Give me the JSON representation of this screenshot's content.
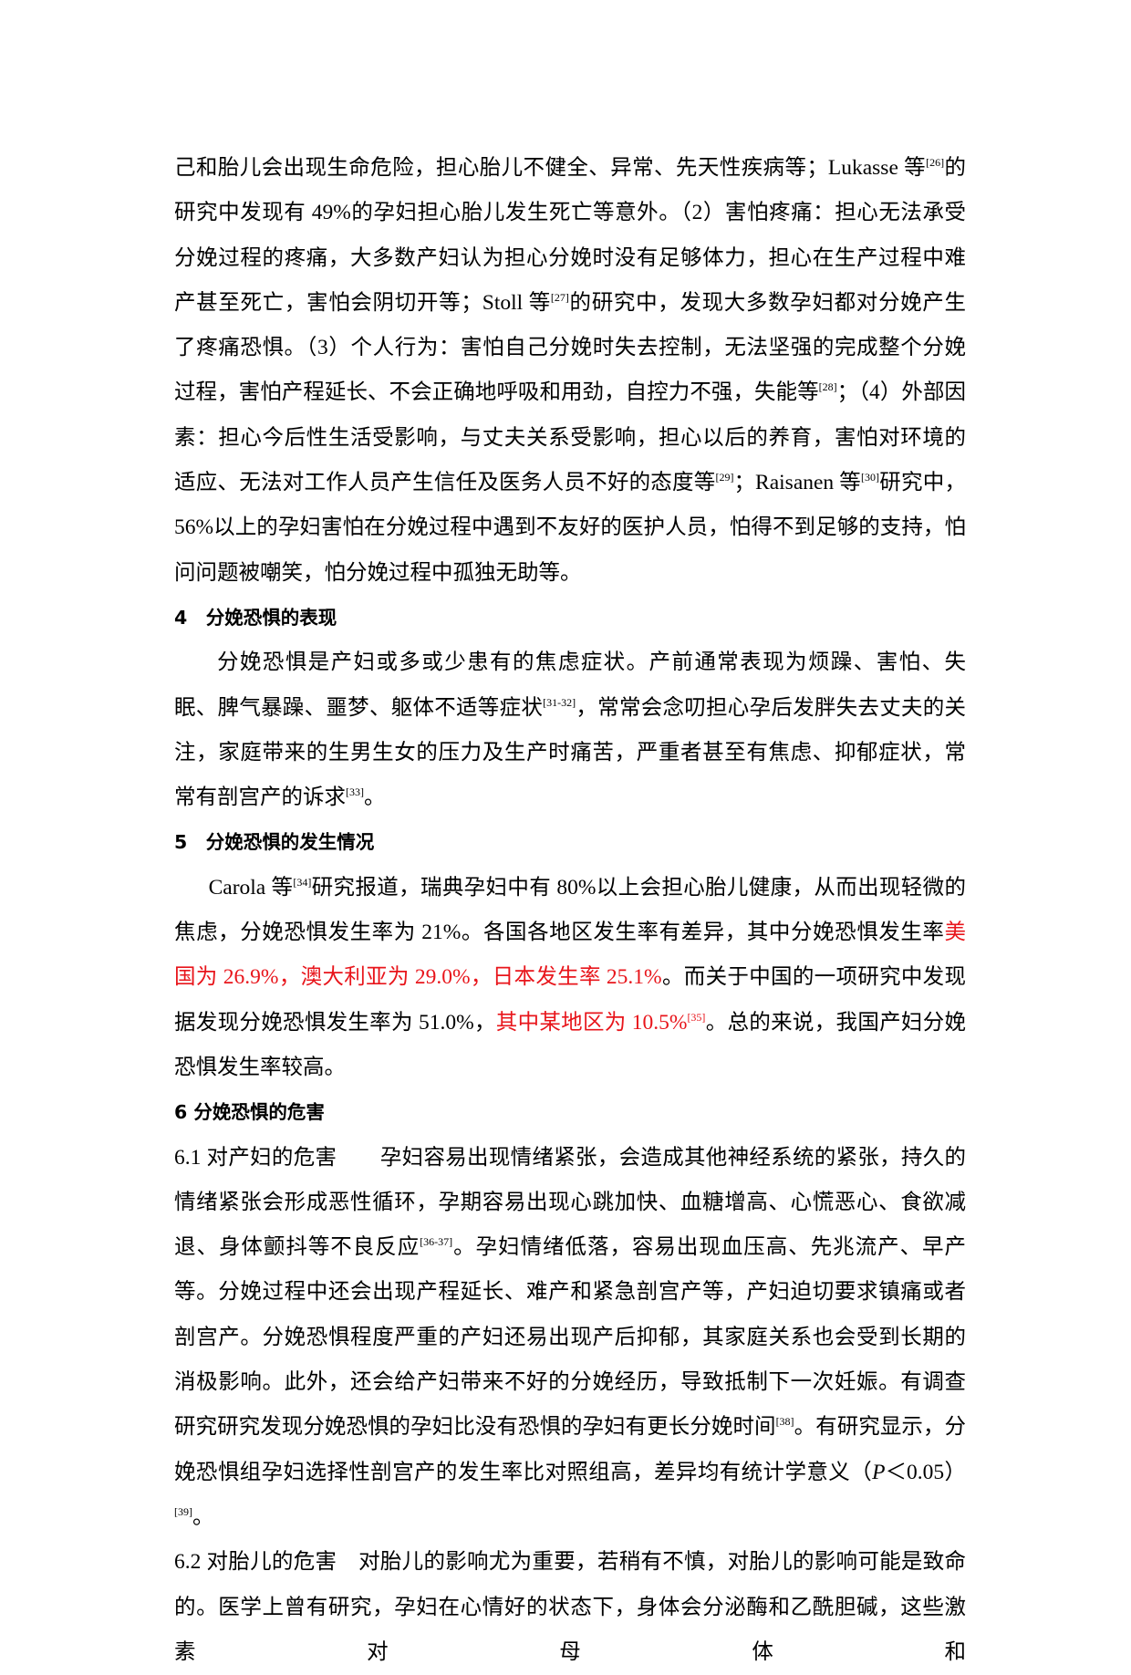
{
  "blocks": [
    {
      "runs": [
        {
          "t": "己和胎儿会出现生命危险，担心胎儿不健全、异常、先天性疾病等；Lukasse 等"
        },
        {
          "sup": "[26]"
        },
        {
          "t": "的研究中发现有 49%的孕妇担心胎儿发生死亡等意外。（2）害怕疼痛：担心无法承受分娩过程的疼痛，大多数产妇认为担心分娩时没有足够体力，担心在生产过程中难产甚至死亡，害怕会阴切开等；Stoll 等"
        },
        {
          "sup": "[27]"
        },
        {
          "t": "的研究中，发现大多数孕妇都对分娩产生了疼痛恐惧。（3）个人行为：害怕自己分娩时失去控制，无法坚强的完成整个分娩过程，害怕产程延长、不会正确地呼吸和用劲，自控力不强，失能等"
        },
        {
          "sup": "[28]"
        },
        {
          "t": "；（4）外部因素：担心今后性生活受影响，与丈夫关系受影响，担心以后的养育，害怕对环境的适应、无法对工作人员产生信任及医务人员不好的态度等"
        },
        {
          "sup": "[29]"
        },
        {
          "t": "；Raisanen 等"
        },
        {
          "sup": "[30]"
        },
        {
          "t": "研究中，56%以上的孕妇害怕在分娩过程中遇到不友好的医护人员，怕得不到足够的支持，怕问问题被嘲笑，怕分娩过程中孤独无助等。"
        }
      ]
    },
    {
      "heading": "4　分娩恐惧的表现"
    },
    {
      "runs": [
        {
          "t": "分娩恐惧是产妇或多或少患有的焦虑症状。产前通常表现为烦躁、害怕、失眠、脾气暴躁、噩梦、躯体不适等症状"
        },
        {
          "sup": "[31-32]"
        },
        {
          "t": "，常常会念叨担心孕后发胖失去丈夫的关注，家庭带来的生男生女的压力及生产时痛苦，严重者甚至有焦虑、抑郁症状，常常有剖宫产的诉求"
        },
        {
          "sup": "[33]"
        },
        {
          "t": "。"
        }
      ]
    },
    {
      "heading": "5　分娩恐惧的发生情况"
    },
    {
      "runs": [
        {
          "t": "Carola 等"
        },
        {
          "sup": "[34]"
        },
        {
          "t": "研究报道，瑞典孕妇中有 80%以上会担心胎儿健康，从而出现轻微的焦虑，分娩恐惧发生率为 21%。各国各地区发生率有差异，其中分娩恐惧发生率"
        },
        {
          "red": "美国为 26.9%，澳大利亚为 29.0%，日本发生率 25.1%"
        },
        {
          "t": "。而关于中国的一项研究中发现据发现分娩恐惧发生率为 51.0%，"
        },
        {
          "red": "其中某地区为 10.5%"
        },
        {
          "redsup": "[35]"
        },
        {
          "t": "。总的来说，我国产妇分娩恐惧发生率较高。"
        }
      ]
    },
    {
      "heading": "6 分娩恐惧的危害"
    },
    {
      "runs": [
        {
          "t": "6.1  对产妇的危害　　孕妇容易出现情绪紧张，会造成其他神经系统的紧张，持久的情绪紧张会形成恶性循环，孕期容易出现心跳加快、血糖增高、心慌恶心、食欲减退、身体颤抖等不良反应"
        },
        {
          "sup": "[36-37]"
        },
        {
          "t": "。孕妇情绪低落，容易出现血压高、先兆流产、早产等。分娩过程中还会出现产程延长、难产和紧急剖宫产等，产妇迫切要求镇痛或者剖宫产。分娩恐惧程度严重的产妇还易出现产后抑郁，其家庭关系也会受到长期的消极影响。此外，还会给产妇带来不好的分娩经历，导致抵制下一次妊娠。有调查研究研究发现分娩恐惧的孕妇比没有恐惧的孕妇有更长分娩时间"
        },
        {
          "sup": "[38]"
        },
        {
          "t": "。有研究显示，分娩恐惧组孕妇选择性剖宫产的发生率比对照组高，差异均有统计学意义（"
        },
        {
          "i": "P"
        },
        {
          "t": "＜0.05）"
        },
        {
          "sup": "[39]"
        },
        {
          "t": "。"
        }
      ]
    },
    {
      "runs": [
        {
          "t": "6.2  对胎儿的危害　对胎儿的影响尤为重要，若稍有不慎，对胎儿的影响可能是致命的。医学上曾有研究，孕妇在心情好的状态下，身体会分泌酶和乙酰胆碱，这些激素对母体和"
        }
      ]
    }
  ]
}
